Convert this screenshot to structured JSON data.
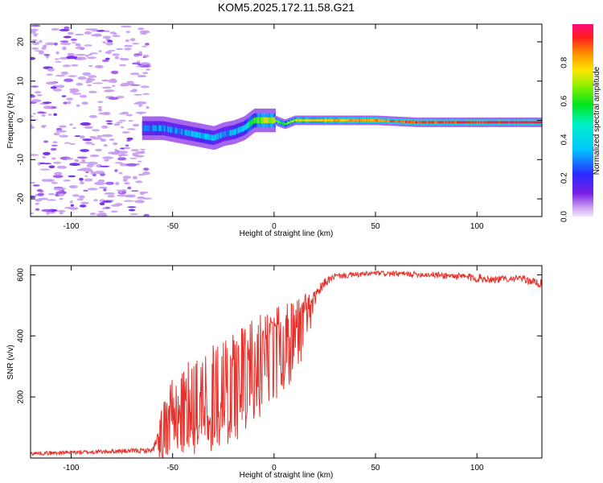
{
  "title": "KOM5.2025.172.11.58.G21",
  "chart_data": [
    {
      "type": "heatmap",
      "xlabel": "Height of straight line (km)",
      "ylabel": "Frequency (Hz)",
      "xlim": [
        -120,
        132
      ],
      "ylim": [
        -24.5,
        24.5
      ],
      "xticks": [
        -100,
        -50,
        0,
        50,
        100
      ],
      "yticks": [
        -20,
        -10,
        0,
        10,
        20
      ],
      "colorbar": {
        "label": "Normalized spectral amplitude",
        "range": [
          0,
          1
        ],
        "ticks": [
          "0.0",
          "0.2",
          "0.4",
          "0.6",
          "0.8"
        ]
      },
      "ridge": {
        "x": [
          -65,
          -55,
          -45,
          -35,
          -30,
          -25,
          -20,
          -15,
          -10,
          -5,
          0,
          5,
          10,
          20,
          30,
          50,
          70,
          90,
          110,
          132
        ],
        "freq": [
          -2,
          -2,
          -3,
          -4,
          -4.5,
          -3.5,
          -3,
          -2,
          0,
          0,
          0,
          -1,
          0,
          0,
          0,
          0,
          -0.5,
          -0.5,
          -0.5,
          -0.5
        ],
        "amplitude": [
          0.25,
          0.3,
          0.3,
          0.35,
          0.35,
          0.3,
          0.35,
          0.4,
          0.6,
          0.7,
          0.7,
          0.6,
          0.7,
          0.75,
          0.8,
          0.85,
          0.9,
          0.92,
          0.95,
          0.98
        ]
      },
      "noise_region_x": [
        -120,
        -62
      ]
    },
    {
      "type": "line",
      "xlabel": "Height of straight line (km)",
      "ylabel": "SNR (v/v)",
      "xlim": [
        -120,
        132
      ],
      "ylim": [
        0,
        630
      ],
      "xticks": [
        -100,
        -50,
        0,
        50,
        100
      ],
      "yticks": [
        200,
        400,
        600
      ],
      "series_color": "#e8302a",
      "envelope": {
        "x": [
          -120,
          -60,
          -55,
          -50,
          -40,
          -30,
          -20,
          -10,
          0,
          10,
          15,
          20,
          25,
          30,
          50,
          80,
          100,
          110,
          120,
          132
        ],
        "mean": [
          15,
          25,
          80,
          140,
          170,
          200,
          240,
          290,
          330,
          390,
          440,
          520,
          575,
          595,
          605,
          600,
          590,
          585,
          590,
          570
        ],
        "noise": [
          6,
          8,
          60,
          80,
          100,
          110,
          120,
          110,
          100,
          80,
          60,
          30,
          15,
          10,
          8,
          10,
          15,
          12,
          10,
          15
        ]
      }
    }
  ]
}
